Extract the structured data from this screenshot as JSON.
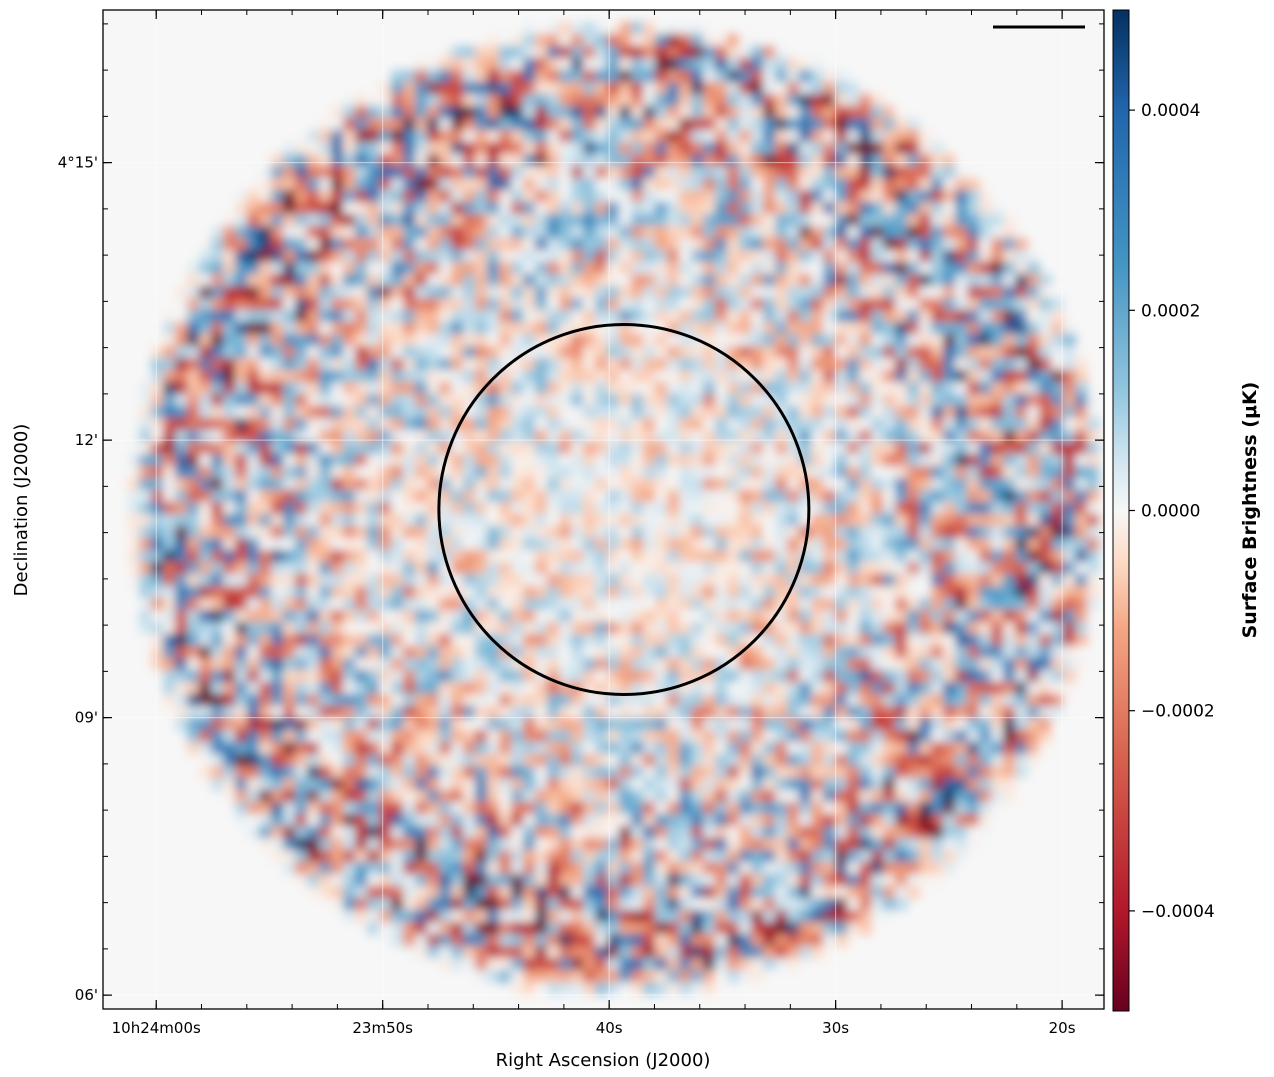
{
  "chart_data": {
    "type": "heatmap",
    "title": "",
    "xlabel": "Right Ascension (J2000)",
    "ylabel": "Declination (J2000)",
    "colorbar_label": "Surface Brightness (μK)",
    "colormap": "RdBu (red = negative, blue = positive)",
    "colormap_colors": {
      "low": "#67001f",
      "mid": "#f7f7f7",
      "high": "#053061"
    },
    "color_range": [
      -0.0005,
      0.0005
    ],
    "colorbar_ticks": [
      {
        "value": 0.0004,
        "label": "0.0004"
      },
      {
        "value": 0.0002,
        "label": "0.0002"
      },
      {
        "value": 0.0,
        "label": "0.0000"
      },
      {
        "value": -0.0002,
        "label": "−0.0002"
      },
      {
        "value": -0.0004,
        "label": "−0.0004"
      }
    ],
    "x_ticks": [
      {
        "value_s": 60,
        "label": "10h24m00s"
      },
      {
        "value_s": 50,
        "label": "23m50s"
      },
      {
        "value_s": 40,
        "label": "40s"
      },
      {
        "value_s": 30,
        "label": "30s"
      },
      {
        "value_s": 20,
        "label": "20s"
      }
    ],
    "y_ticks": [
      {
        "value_arcmin": 255,
        "label": "4°15'"
      },
      {
        "value_arcmin": 252,
        "label": "12'"
      },
      {
        "value_arcmin": 249,
        "label": "09'"
      },
      {
        "value_arcmin": 246,
        "label": "06'"
      }
    ],
    "xlim_s": [
      62.35,
      18.15
    ],
    "ylim_arcmin": [
      245.85,
      256.65
    ],
    "field": {
      "center_ra_s": 39.65,
      "center_dec_arcmin": 251.25,
      "radius_arcmin": 5.2
    },
    "circle": {
      "center_ra_s": 39.35,
      "center_dec_arcmin": 251.25,
      "radius_arcmin": 2.0,
      "color": "#000000"
    },
    "scale_bar": {
      "present": true,
      "position": "top-right"
    },
    "grid": true
  }
}
